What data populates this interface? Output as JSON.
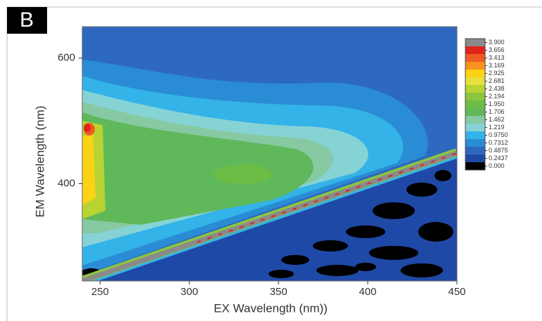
{
  "chart_data": {
    "type": "contour",
    "panel_label": "B",
    "x_label": "EX Wavelength (nm))",
    "y_label": "EM Wavelength (nm)",
    "xlim": [
      240,
      450
    ],
    "xticks": [
      250,
      300,
      350,
      400,
      450
    ],
    "ylim": [
      245,
      650
    ],
    "yticks": [
      400,
      600
    ],
    "colorbar_ticks": [
      {
        "value": 3.9,
        "label": "3.900"
      },
      3.656,
      3.413,
      3.169,
      2.925,
      2.681,
      2.438,
      2.194,
      {
        "value": 1.95,
        "label": "1.950"
      },
      1.706,
      1.462,
      1.219,
      {
        "value": 0.975,
        "label": "0.9750"
      },
      0.7312,
      0.4875,
      0.2437,
      {
        "value": 0,
        "label": "0.000"
      }
    ],
    "colorbar_colors": [
      "#8a8a8a",
      "#e2231a",
      "#ee5a24",
      "#f7931e",
      "#fbd314",
      "#e6e23a",
      "#b8d432",
      "#8cc63f",
      "#6cbd45",
      "#5fb85a",
      "#86c9a2",
      "#86d3d6",
      "#33b3e8",
      "#2a8cd4",
      "#2e69c0",
      "#1f49a6",
      "#000000"
    ]
  }
}
